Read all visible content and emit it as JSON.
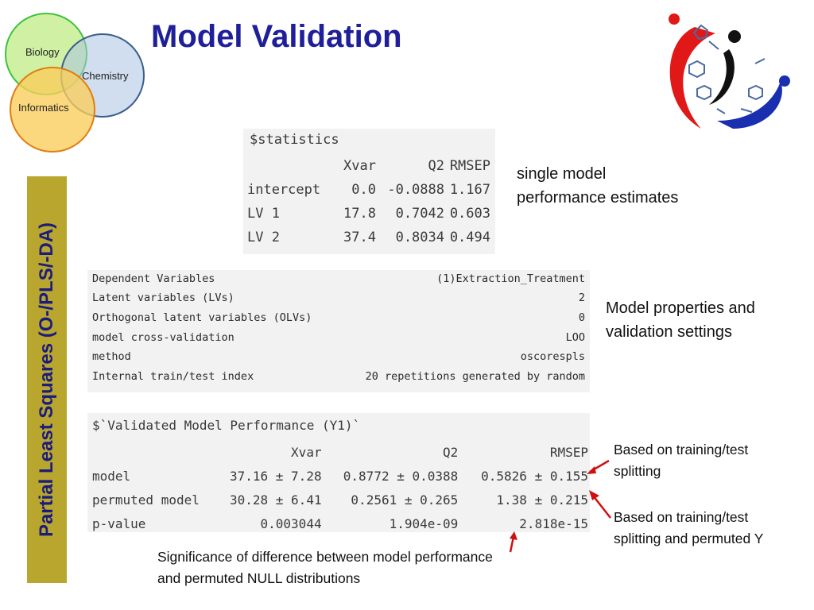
{
  "venn": {
    "biology": "Biology",
    "chemistry": "Chemistry",
    "informatics": "Informatics"
  },
  "title": "Model Validation",
  "side_label": "Partial Least  Squares (O-/PLS/-DA)",
  "statistics": {
    "title": "$statistics",
    "headers": [
      "",
      "Xvar",
      "Q2",
      "RMSEP"
    ],
    "rows": [
      [
        "intercept",
        "0.0",
        "-0.0888",
        "1.167"
      ],
      [
        "LV 1",
        "17.8",
        "0.7042",
        "0.603"
      ],
      [
        "LV 2",
        "37.4",
        "0.8034",
        "0.494"
      ]
    ]
  },
  "properties": [
    {
      "key": "Dependent Variables",
      "value": "(1)Extraction_Treatment"
    },
    {
      "key": "Latent variables (LVs)",
      "value": "2"
    },
    {
      "key": "Orthogonal latent variables (OLVs)",
      "value": "0"
    },
    {
      "key": "model cross-validation",
      "value": "LOO"
    },
    {
      "key": "method",
      "value": "oscorespls"
    },
    {
      "key": "Internal train/test index",
      "value": "20 repetitions generated by random"
    }
  ],
  "validated": {
    "title": "$`Validated Model Performance (Y1)`",
    "headers": [
      "",
      "Xvar",
      "Q2",
      "RMSEP"
    ],
    "rows": [
      [
        "model",
        "37.16 ± 7.28",
        "0.8772 ± 0.0388",
        "0.5826 ± 0.155"
      ],
      [
        "permuted model",
        "30.28 ± 6.41",
        "0.2561 ± 0.265",
        "1.38 ± 0.215"
      ],
      [
        "p-value",
        "0.003044",
        "1.904e-09",
        "2.818e-15"
      ]
    ]
  },
  "annotations": {
    "single_model": [
      "single model",
      "performance estimates"
    ],
    "properties": [
      "Model properties and",
      "validation settings"
    ],
    "training": [
      "Based on training/test",
      "splitting"
    ],
    "permuted": [
      "Based on training/test",
      "splitting and permuted Y"
    ],
    "significance": [
      "Significance of difference between model performance",
      "and permuted NULL distributions"
    ]
  },
  "colors": {
    "title": "#1f1f9a",
    "banner": "#b8a62e",
    "arrow": "#d01010"
  }
}
